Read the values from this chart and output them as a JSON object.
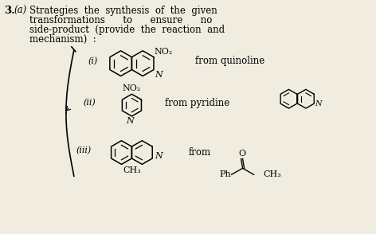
{
  "background_color": "#f0ece0",
  "label_i": "(i)",
  "label_ii": "(ii)",
  "label_iii": "(iii)",
  "text_from_quinoline": "from quinoline",
  "text_from_pyridine": "from pyridine",
  "text_from": "from",
  "text_NO2_1": "NO₂",
  "text_NO2_2": "NO₂",
  "text_Ph": "Ph",
  "text_CH3_1": "CH₃",
  "text_CH3_2": "CH₃",
  "text_N_1": "N",
  "text_N_2": "N",
  "text_N_3": "N",
  "text_O": "O",
  "font_size_main": 8.5,
  "font_size_label": 8,
  "font_size_struct": 7.5,
  "header_line1": "3.   (a)   Strategies  the  synthesis  of  the  given",
  "header_line2": "           transformations      to      ensure      no",
  "header_line3": "           side-product  (provide  the  reaction  and",
  "header_line4": "           mechanism)  :"
}
